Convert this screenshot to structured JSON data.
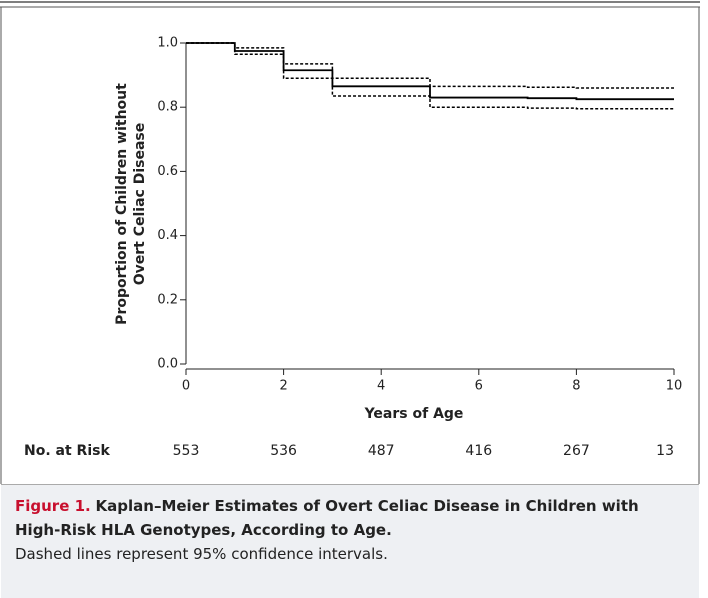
{
  "chart_data": {
    "type": "step",
    "y_label": [
      "Proportion of Children without",
      "Overt Celiac Disease"
    ],
    "x_label": "Years of Age",
    "x": [
      0,
      1,
      2,
      3,
      5,
      7,
      8,
      10
    ],
    "series": [
      {
        "color": "#000000",
        "dashed": false,
        "values": [
          1.0,
          0.975,
          0.915,
          0.865,
          0.83,
          0.828,
          0.825,
          0.825
        ]
      },
      {
        "color": "#000000",
        "dashed": true,
        "values": [
          1.0,
          0.985,
          0.935,
          0.89,
          0.865,
          0.862,
          0.86,
          0.86
        ]
      },
      {
        "color": "#000000",
        "dashed": true,
        "values": [
          1.0,
          0.965,
          0.89,
          0.835,
          0.8,
          0.797,
          0.795,
          0.795
        ]
      }
    ],
    "xlim": [
      0,
      10
    ],
    "xticks": [
      0,
      2,
      4,
      6,
      8,
      10
    ],
    "ylim": [
      0,
      1
    ],
    "yticks": [
      {
        "value": 0,
        "label": "0.0"
      },
      0.2,
      0.4,
      0.6,
      0.8,
      {
        "value": 1,
        "label": "1.0"
      }
    ],
    "at_risk": {
      "label": "No. at Risk",
      "x": [
        0,
        2,
        4,
        6,
        8,
        10
      ],
      "values": [
        553,
        536,
        487,
        416,
        267,
        13
      ]
    }
  },
  "caption": {
    "figure_label": "Figure 1.",
    "title": "Kaplan–Meier Estimates of Overt Celiac Disease in Children with High-Risk HLA Genotypes, According to Age.",
    "note": "Dashed lines represent 95% confidence intervals."
  }
}
